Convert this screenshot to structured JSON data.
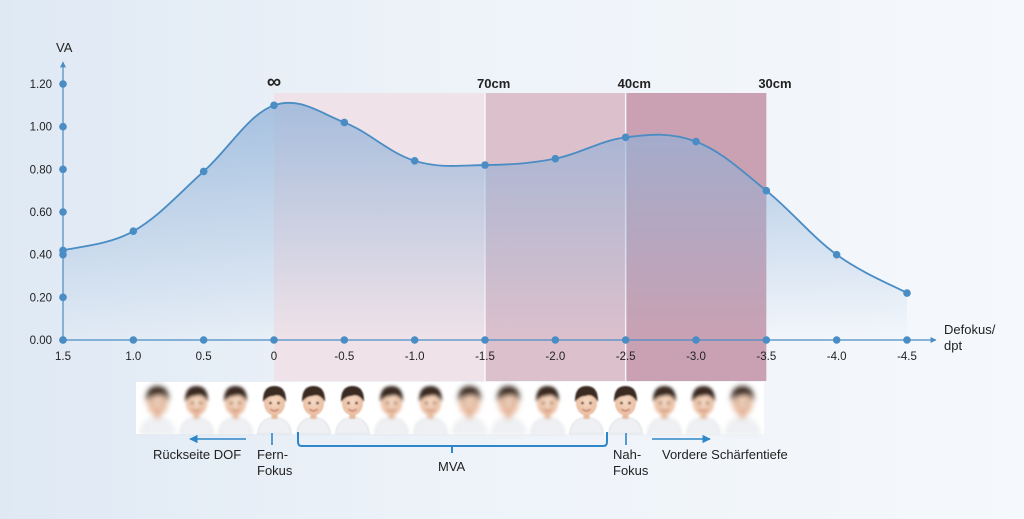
{
  "chart_data": {
    "type": "area",
    "ylabel": "VA",
    "xlabel_line1": "Defokus/",
    "xlabel_line2": "dpt",
    "x_ticks": [
      "1.5",
      "1.0",
      "0.5",
      "0",
      "-0.5",
      "-1.0",
      "-1.5",
      "-2.0",
      "-2.5",
      "-3.0",
      "-3.5",
      "-4.0",
      "-4.5"
    ],
    "y_ticks": [
      "0.00",
      "0.20",
      "0.40",
      "0.60",
      "0.80",
      "1.00",
      "1.20"
    ],
    "xlim": [
      1.5,
      -4.5
    ],
    "ylim": [
      0,
      1.2
    ],
    "x_axis_reversed": true,
    "grid": false,
    "series": [
      {
        "x": [
          1.5,
          1.0,
          0.5,
          0,
          -0.5,
          -1.0,
          -1.5,
          -2.0,
          -2.5,
          -3.0,
          -3.5,
          -4.0,
          -4.5
        ],
        "y": [
          0.42,
          0.51,
          0.79,
          1.1,
          1.02,
          0.84,
          0.82,
          0.85,
          0.95,
          0.93,
          0.7,
          0.4,
          0.22
        ],
        "color": "#4a8cc4"
      }
    ],
    "zones": [
      {
        "from": 0,
        "to": -1.5,
        "color": "#efe2e8"
      },
      {
        "from": -1.5,
        "to": -2.5,
        "color": "#dcc0cc"
      },
      {
        "from": -2.5,
        "to": -3.5,
        "color": "#c9a1b3"
      }
    ],
    "distance_markers": [
      {
        "x": 0,
        "label": "∞"
      },
      {
        "x": -1.5,
        "label": "70cm"
      },
      {
        "x": -2.5,
        "label": "40cm"
      },
      {
        "x": -3.5,
        "label": "30cm"
      }
    ]
  },
  "photo_strip": {
    "count": 16
  },
  "annotations": {
    "rear_dof": "Rückseite DOF",
    "far_focus_line1": "Fern-",
    "far_focus_line2": "Fokus",
    "mva": "MVA",
    "near_focus_line1": "Nah-",
    "near_focus_line2": "Fokus",
    "front_dof": "Vordere Schärfentiefe"
  },
  "colors": {
    "axis": "#4a8cc4",
    "curve": "#4a8cc4",
    "annotation": "#2f86c8",
    "text": "#222222"
  }
}
